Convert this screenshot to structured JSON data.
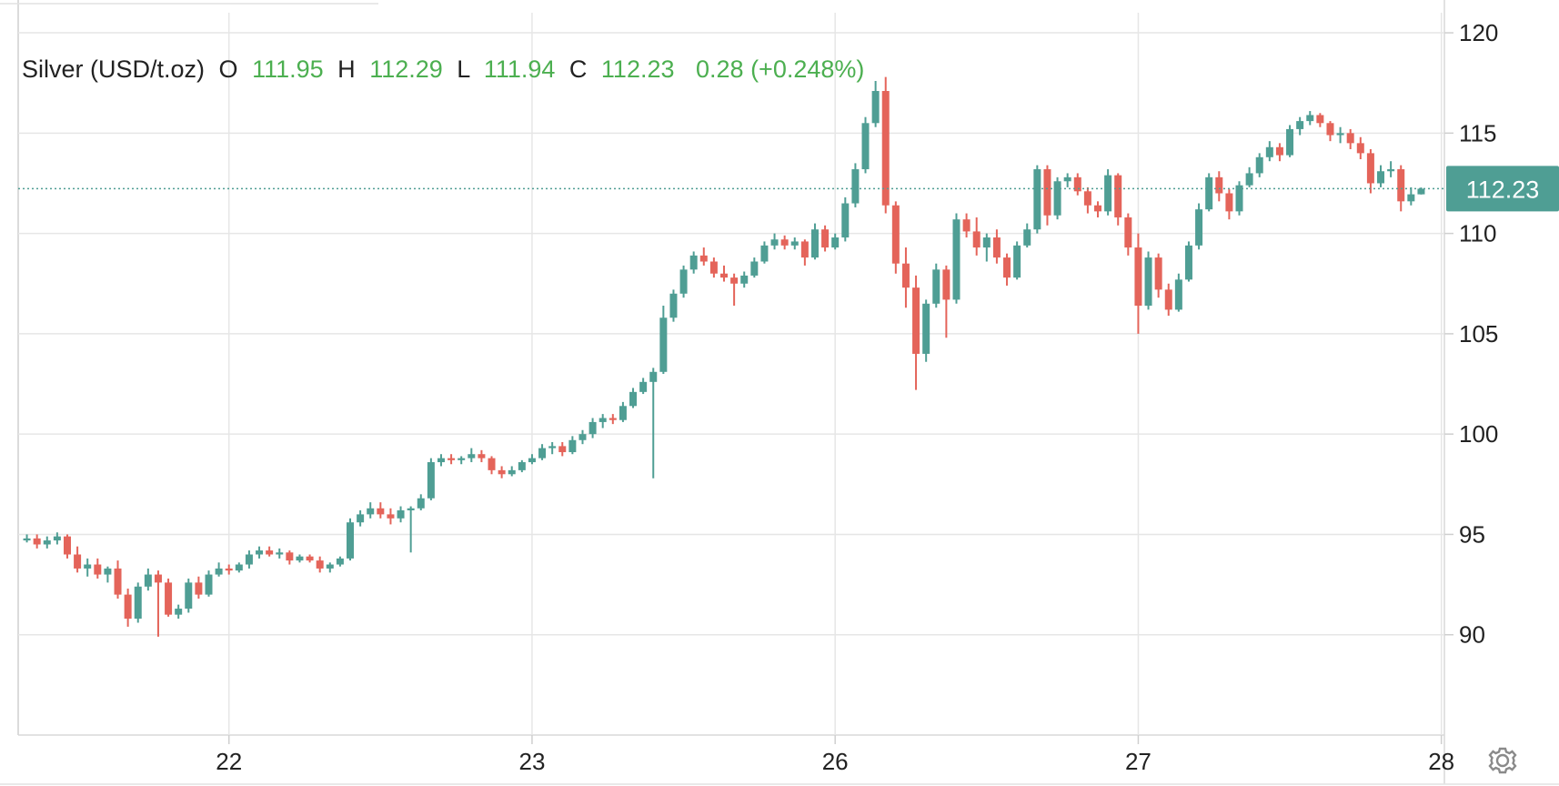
{
  "legend": {
    "symbol": "Silver (USD/t.oz)",
    "open_label": "O",
    "open_value": "111.95",
    "high_label": "H",
    "high_value": "112.29",
    "low_label": "L",
    "low_value": "111.94",
    "close_label": "C",
    "close_value": "112.23",
    "change": "0.28 (+0.248%)"
  },
  "last_price_label": "112.23",
  "colors": {
    "up": "#4f9e94",
    "down": "#e4645a",
    "legend_value": "#4caf50",
    "grid": "#e6e6e6",
    "price_tag": "#4f9e94"
  },
  "settings_icon": "gear-icon",
  "chart_data": {
    "type": "candlestick",
    "title": "Silver (USD/t.oz)",
    "ylim": [
      85,
      121
    ],
    "y_ticks": [
      "90",
      "95",
      "100",
      "105",
      "110",
      "115",
      "120"
    ],
    "x_ticks": [
      "22",
      "23",
      "26",
      "27",
      "28"
    ],
    "x_tick_index": [
      20,
      50,
      80,
      110,
      140
    ],
    "last_price": 112.23,
    "grid": true,
    "candles": [
      [
        94.7,
        95.0,
        94.6,
        94.8
      ],
      [
        94.8,
        95.0,
        94.3,
        94.5
      ],
      [
        94.5,
        94.9,
        94.3,
        94.7
      ],
      [
        94.7,
        95.1,
        94.5,
        94.9
      ],
      [
        94.9,
        95.0,
        93.8,
        94.0
      ],
      [
        94.0,
        94.4,
        93.1,
        93.3
      ],
      [
        93.3,
        93.8,
        92.9,
        93.5
      ],
      [
        93.5,
        93.8,
        92.8,
        93.0
      ],
      [
        93.0,
        93.4,
        92.6,
        93.3
      ],
      [
        93.3,
        93.7,
        91.8,
        92.0
      ],
      [
        92.0,
        92.3,
        90.4,
        90.8
      ],
      [
        90.8,
        92.6,
        90.6,
        92.4
      ],
      [
        92.4,
        93.3,
        92.2,
        93.0
      ],
      [
        93.0,
        93.2,
        89.9,
        92.6
      ],
      [
        92.6,
        92.8,
        90.9,
        91.0
      ],
      [
        91.0,
        91.5,
        90.8,
        91.3
      ],
      [
        91.3,
        92.8,
        91.1,
        92.6
      ],
      [
        92.6,
        92.9,
        91.8,
        92.0
      ],
      [
        92.0,
        93.2,
        91.9,
        93.0
      ],
      [
        93.0,
        93.6,
        92.9,
        93.3
      ],
      [
        93.3,
        93.5,
        93.0,
        93.2
      ],
      [
        93.2,
        93.6,
        93.1,
        93.5
      ],
      [
        93.5,
        94.2,
        93.3,
        94.0
      ],
      [
        94.0,
        94.4,
        93.8,
        94.2
      ],
      [
        94.2,
        94.4,
        93.9,
        94.0
      ],
      [
        94.0,
        94.3,
        93.8,
        94.1
      ],
      [
        94.1,
        94.2,
        93.5,
        93.7
      ],
      [
        93.7,
        94.0,
        93.6,
        93.9
      ],
      [
        93.9,
        94.0,
        93.6,
        93.7
      ],
      [
        93.7,
        93.9,
        93.1,
        93.3
      ],
      [
        93.3,
        93.6,
        93.1,
        93.5
      ],
      [
        93.5,
        93.9,
        93.4,
        93.8
      ],
      [
        93.8,
        95.8,
        93.7,
        95.6
      ],
      [
        95.6,
        96.2,
        95.4,
        96.0
      ],
      [
        96.0,
        96.6,
        95.8,
        96.3
      ],
      [
        96.3,
        96.6,
        95.8,
        96.0
      ],
      [
        96.0,
        96.3,
        95.5,
        95.8
      ],
      [
        95.8,
        96.4,
        95.6,
        96.2
      ],
      [
        96.2,
        96.4,
        94.1,
        96.3
      ],
      [
        96.3,
        97.0,
        96.2,
        96.8
      ],
      [
        96.8,
        98.8,
        96.7,
        98.6
      ],
      [
        98.6,
        99.0,
        98.4,
        98.8
      ],
      [
        98.8,
        99.0,
        98.5,
        98.7
      ],
      [
        98.7,
        98.9,
        98.5,
        98.8
      ],
      [
        98.8,
        99.3,
        98.6,
        99.0
      ],
      [
        99.0,
        99.2,
        98.6,
        98.8
      ],
      [
        98.8,
        98.9,
        98.0,
        98.2
      ],
      [
        98.2,
        98.4,
        97.8,
        98.0
      ],
      [
        98.0,
        98.4,
        97.9,
        98.2
      ],
      [
        98.2,
        98.7,
        98.1,
        98.6
      ],
      [
        98.6,
        99.0,
        98.5,
        98.8
      ],
      [
        98.8,
        99.5,
        98.7,
        99.3
      ],
      [
        99.3,
        99.6,
        99.0,
        99.4
      ],
      [
        99.4,
        99.6,
        98.9,
        99.1
      ],
      [
        99.1,
        99.9,
        99.0,
        99.7
      ],
      [
        99.7,
        100.2,
        99.5,
        100.0
      ],
      [
        100.0,
        100.8,
        99.8,
        100.6
      ],
      [
        100.6,
        101.0,
        100.3,
        100.8
      ],
      [
        100.8,
        101.0,
        100.5,
        100.7
      ],
      [
        100.7,
        101.6,
        100.6,
        101.4
      ],
      [
        101.4,
        102.3,
        101.3,
        102.1
      ],
      [
        102.1,
        102.8,
        102.0,
        102.6
      ],
      [
        102.6,
        103.3,
        97.8,
        103.1
      ],
      [
        103.1,
        106.4,
        103.0,
        105.8
      ],
      [
        105.8,
        107.2,
        105.6,
        107.0
      ],
      [
        107.0,
        108.4,
        106.8,
        108.2
      ],
      [
        108.2,
        109.1,
        108.0,
        108.9
      ],
      [
        108.9,
        109.3,
        108.4,
        108.6
      ],
      [
        108.6,
        108.8,
        107.8,
        108.0
      ],
      [
        108.0,
        108.4,
        107.6,
        107.8
      ],
      [
        107.8,
        108.0,
        106.4,
        107.5
      ],
      [
        107.5,
        108.1,
        107.3,
        107.9
      ],
      [
        107.9,
        108.8,
        107.8,
        108.6
      ],
      [
        108.6,
        109.6,
        108.5,
        109.4
      ],
      [
        109.4,
        110.0,
        109.2,
        109.7
      ],
      [
        109.7,
        109.9,
        109.2,
        109.4
      ],
      [
        109.4,
        109.8,
        109.2,
        109.6
      ],
      [
        109.6,
        109.7,
        108.4,
        108.8
      ],
      [
        108.8,
        110.5,
        108.7,
        110.2
      ],
      [
        110.2,
        110.4,
        109.1,
        109.3
      ],
      [
        109.3,
        110.0,
        109.2,
        109.8
      ],
      [
        109.8,
        111.8,
        109.6,
        111.5
      ],
      [
        111.5,
        113.5,
        111.3,
        113.2
      ],
      [
        113.2,
        115.8,
        113.0,
        115.5
      ],
      [
        115.5,
        117.6,
        115.3,
        117.1
      ],
      [
        117.1,
        117.8,
        111.0,
        111.4
      ],
      [
        111.4,
        111.6,
        108.0,
        108.5
      ],
      [
        108.5,
        109.3,
        106.3,
        107.3
      ],
      [
        107.3,
        107.9,
        102.2,
        104.0
      ],
      [
        104.0,
        106.7,
        103.6,
        106.5
      ],
      [
        106.5,
        108.5,
        106.3,
        108.2
      ],
      [
        108.2,
        108.4,
        104.8,
        106.7
      ],
      [
        106.7,
        111.0,
        106.5,
        110.7
      ],
      [
        110.7,
        111.0,
        109.8,
        110.1
      ],
      [
        110.1,
        110.8,
        108.9,
        109.3
      ],
      [
        109.3,
        110.0,
        108.6,
        109.8
      ],
      [
        109.8,
        110.2,
        108.5,
        108.8
      ],
      [
        108.8,
        109.0,
        107.4,
        107.8
      ],
      [
        107.8,
        109.6,
        107.7,
        109.4
      ],
      [
        109.4,
        110.5,
        109.3,
        110.2
      ],
      [
        110.2,
        113.4,
        110.0,
        113.2
      ],
      [
        113.2,
        113.4,
        110.4,
        110.9
      ],
      [
        110.9,
        112.8,
        110.7,
        112.6
      ],
      [
        112.6,
        113.0,
        112.3,
        112.8
      ],
      [
        112.8,
        113.0,
        111.9,
        112.1
      ],
      [
        112.1,
        112.3,
        111.0,
        111.4
      ],
      [
        111.4,
        111.6,
        110.8,
        111.1
      ],
      [
        111.1,
        113.2,
        110.9,
        112.9
      ],
      [
        112.9,
        113.0,
        110.4,
        110.8
      ],
      [
        110.8,
        111.0,
        108.9,
        109.3
      ],
      [
        109.3,
        110.0,
        105.0,
        106.4
      ],
      [
        106.4,
        109.1,
        106.2,
        108.8
      ],
      [
        108.8,
        109.0,
        106.8,
        107.2
      ],
      [
        107.2,
        107.5,
        105.9,
        106.2
      ],
      [
        106.2,
        108.0,
        106.1,
        107.7
      ],
      [
        107.7,
        109.6,
        107.6,
        109.4
      ],
      [
        109.4,
        111.5,
        109.2,
        111.2
      ],
      [
        111.2,
        113.0,
        111.1,
        112.8
      ],
      [
        112.8,
        113.1,
        111.6,
        112.0
      ],
      [
        112.0,
        112.2,
        110.7,
        111.1
      ],
      [
        111.1,
        112.6,
        110.9,
        112.4
      ],
      [
        112.4,
        113.3,
        112.3,
        113.0
      ],
      [
        113.0,
        114.0,
        112.8,
        113.8
      ],
      [
        113.8,
        114.6,
        113.6,
        114.3
      ],
      [
        114.3,
        114.5,
        113.6,
        113.9
      ],
      [
        113.9,
        115.4,
        113.8,
        115.2
      ],
      [
        115.2,
        115.8,
        114.9,
        115.6
      ],
      [
        115.6,
        116.1,
        115.4,
        115.9
      ],
      [
        115.9,
        116.0,
        115.3,
        115.5
      ],
      [
        115.5,
        115.6,
        114.6,
        114.9
      ],
      [
        114.9,
        115.3,
        114.5,
        115.0
      ],
      [
        115.0,
        115.2,
        114.2,
        114.5
      ],
      [
        114.5,
        114.8,
        113.7,
        114.0
      ],
      [
        114.0,
        114.2,
        112.0,
        112.5
      ],
      [
        112.5,
        113.4,
        112.3,
        113.1
      ],
      [
        113.1,
        113.6,
        112.8,
        113.2
      ],
      [
        113.2,
        113.4,
        111.1,
        111.6
      ],
      [
        111.6,
        112.3,
        111.4,
        111.95
      ],
      [
        111.95,
        112.29,
        111.94,
        112.23
      ]
    ]
  }
}
